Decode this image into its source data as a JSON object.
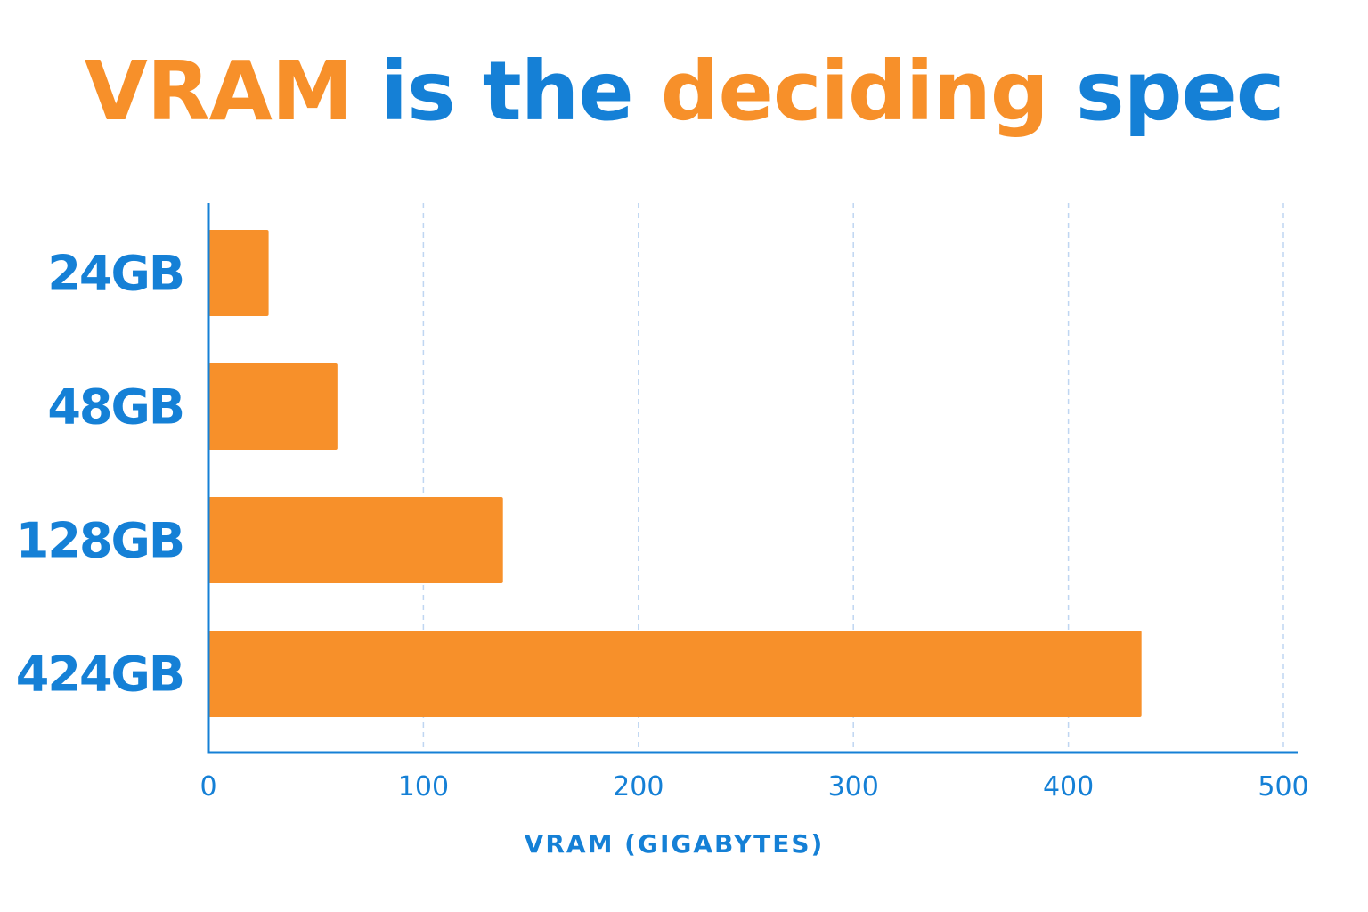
{
  "title": {
    "parts": [
      {
        "text": "VRAM",
        "color": "#F7902A"
      },
      {
        "text": " is the ",
        "color": "#1580D6"
      },
      {
        "text": "deciding",
        "color": "#F7902A"
      },
      {
        "text": " spec",
        "color": "#1580D6"
      }
    ]
  },
  "colors": {
    "bar": "#F7902A",
    "axis": "#1580D6",
    "grid": "#BFD6F2",
    "label": "#1580D6"
  },
  "chart_data": {
    "type": "bar",
    "orientation": "horizontal",
    "categories": [
      "24GB",
      "48GB",
      "128GB",
      "424GB"
    ],
    "values": [
      28,
      60,
      137,
      434
    ],
    "xlabel": "VRAM (GIGABYTES)",
    "ylabel": "",
    "xlim": [
      0,
      500
    ],
    "xticks": [
      "0",
      "100",
      "200",
      "300",
      "400",
      "500"
    ],
    "grid": "vertical dashed",
    "legend": "none"
  }
}
